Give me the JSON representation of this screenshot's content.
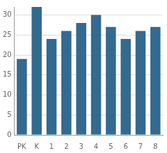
{
  "chart_data": {
    "type": "bar",
    "categories": [
      "PK",
      "K",
      "1",
      "2",
      "3",
      "4",
      "5",
      "6",
      "7",
      "8"
    ],
    "values": [
      19,
      32,
      24,
      26,
      28,
      30,
      27,
      24,
      26,
      27
    ],
    "color": "#336a90",
    "ylim": [
      0,
      32
    ],
    "yticks": [
      0,
      5,
      10,
      15,
      20,
      25,
      30
    ],
    "grid": true
  }
}
